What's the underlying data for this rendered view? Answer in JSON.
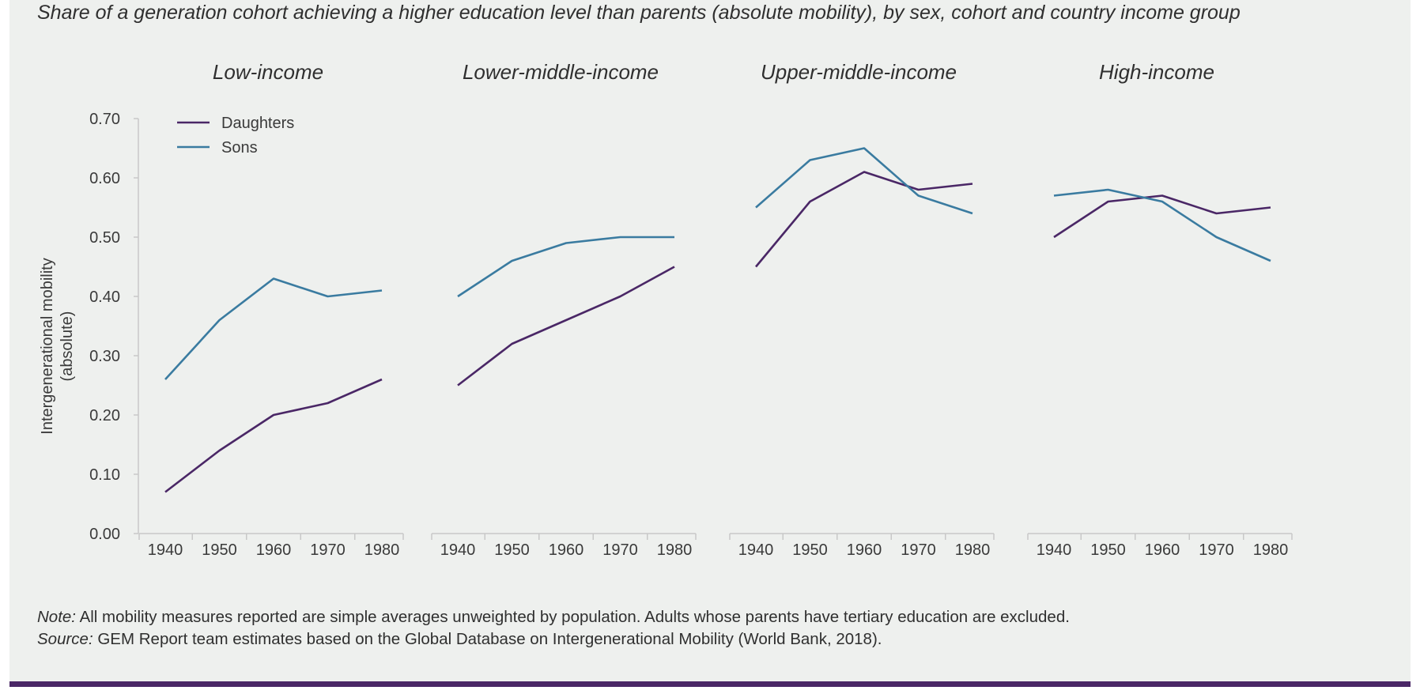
{
  "title": "Share of a generation cohort achieving a higher education level than parents (absolute mobility), by sex, cohort and country income group",
  "note_label": "Note:",
  "note_text": " All mobility measures reported are simple averages unweighted by population. Adults whose parents have tertiary education are excluded.",
  "source_label": "Source:",
  "source_text": " GEM Report team estimates based on the Global Database on Intergenerational Mobility (World Bank, 2018).",
  "colors": {
    "daughters": "#4a2766",
    "sons": "#3a7ba0",
    "axis": "#c8c8c8",
    "background": "#eef0ee",
    "accent_bar": "#4a2766"
  },
  "chart_data": {
    "type": "line",
    "ylabel": "Intergenerational mobility (absolute)",
    "ylabel_lines": [
      "Intergenerational mobility",
      "(absolute)"
    ],
    "ylim": [
      0,
      0.7
    ],
    "yticks": [
      "0.00",
      "0.10",
      "0.20",
      "0.30",
      "0.40",
      "0.50",
      "0.60",
      "0.70"
    ],
    "ytick_values": [
      0,
      0.1,
      0.2,
      0.3,
      0.4,
      0.5,
      0.6,
      0.7
    ],
    "x": [
      "1940",
      "1950",
      "1960",
      "1970",
      "1980"
    ],
    "legend": [
      "Daughters",
      "Sons"
    ],
    "legend_position": "top-left",
    "grid": false,
    "panels": [
      {
        "name": "Low-income",
        "series": [
          {
            "name": "Daughters",
            "values": [
              0.07,
              0.14,
              0.2,
              0.22,
              0.26
            ]
          },
          {
            "name": "Sons",
            "values": [
              0.26,
              0.36,
              0.43,
              0.4,
              0.41
            ]
          }
        ]
      },
      {
        "name": "Lower-middle-income",
        "series": [
          {
            "name": "Daughters",
            "values": [
              0.25,
              0.32,
              0.36,
              0.4,
              0.45
            ]
          },
          {
            "name": "Sons",
            "values": [
              0.4,
              0.46,
              0.49,
              0.5,
              0.5
            ]
          }
        ]
      },
      {
        "name": "Upper-middle-income",
        "series": [
          {
            "name": "Daughters",
            "values": [
              0.45,
              0.56,
              0.61,
              0.58,
              0.59
            ]
          },
          {
            "name": "Sons",
            "values": [
              0.55,
              0.63,
              0.65,
              0.57,
              0.54
            ]
          }
        ]
      },
      {
        "name": "High-income",
        "series": [
          {
            "name": "Daughters",
            "values": [
              0.5,
              0.56,
              0.57,
              0.54,
              0.55
            ]
          },
          {
            "name": "Sons",
            "values": [
              0.57,
              0.58,
              0.56,
              0.5,
              0.46
            ]
          }
        ]
      }
    ]
  }
}
